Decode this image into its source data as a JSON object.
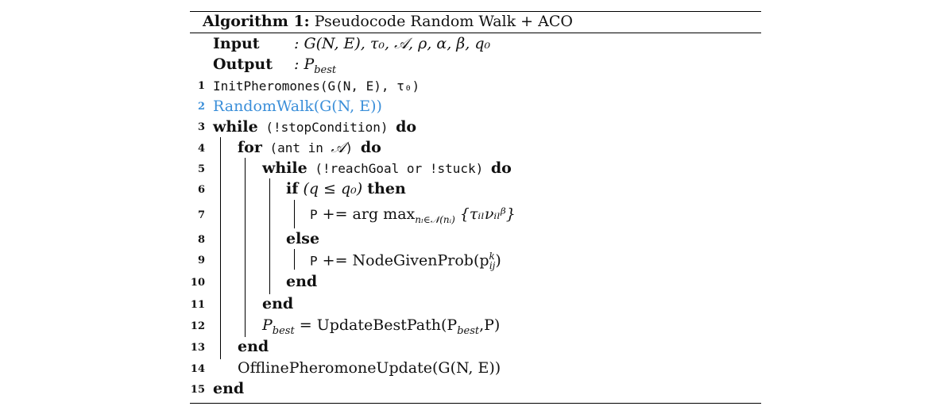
{
  "algorithm": {
    "label": "Algorithm 1:",
    "title": "Pseudocode Random Walk + ACO",
    "input_label": "Input",
    "input_value": ": G(N, E),  τ₀,  𝒜,  ρ,  α,  β,  q₀",
    "output_label": "Output",
    "output_value": ": P",
    "output_sub": "best"
  },
  "lines": [
    {
      "num": "1",
      "text": "InitPheromones(G(N, E),  τ₀)"
    },
    {
      "num": "2",
      "text": "RandomWalk(G(N, E))"
    },
    {
      "num": "3",
      "kw": "while",
      "mono": " (!stopCondition) ",
      "kw2": "do"
    },
    {
      "num": "4",
      "kw": "for",
      "mono": " (ant in ",
      "cal": "𝒜",
      "mono2": ") ",
      "kw2": "do"
    },
    {
      "num": "5",
      "kw": "while",
      "mono": " (!reachGoal or !stuck) ",
      "kw2": "do"
    },
    {
      "num": "6",
      "kw": "if",
      "text": " (q ≤ q₀) ",
      "kw2": "then"
    },
    {
      "num": "7",
      "mono": "P",
      "text": " += arg max",
      "sub": "nₗ∈𝒩(nᵢ)",
      "text2": " {τᵢₗνᵢₗᵝ}"
    },
    {
      "num": "8",
      "kw": "else"
    },
    {
      "num": "9",
      "mono": "P",
      "text": " += NodeGivenProb(p",
      "sup": "k",
      "sub": "ij",
      "text2": ")"
    },
    {
      "num": "10",
      "kw": "end"
    },
    {
      "num": "11",
      "kw": "end"
    },
    {
      "num": "12",
      "text": "P",
      "sub": "best",
      "text2": " = UpdateBestPath(P",
      "sub2": "best",
      "text3": ",P)"
    },
    {
      "num": "13",
      "kw": "end"
    },
    {
      "num": "14",
      "text": "OfflinePheromoneUpdate(G(N, E))"
    },
    {
      "num": "15",
      "kw": "end"
    }
  ]
}
